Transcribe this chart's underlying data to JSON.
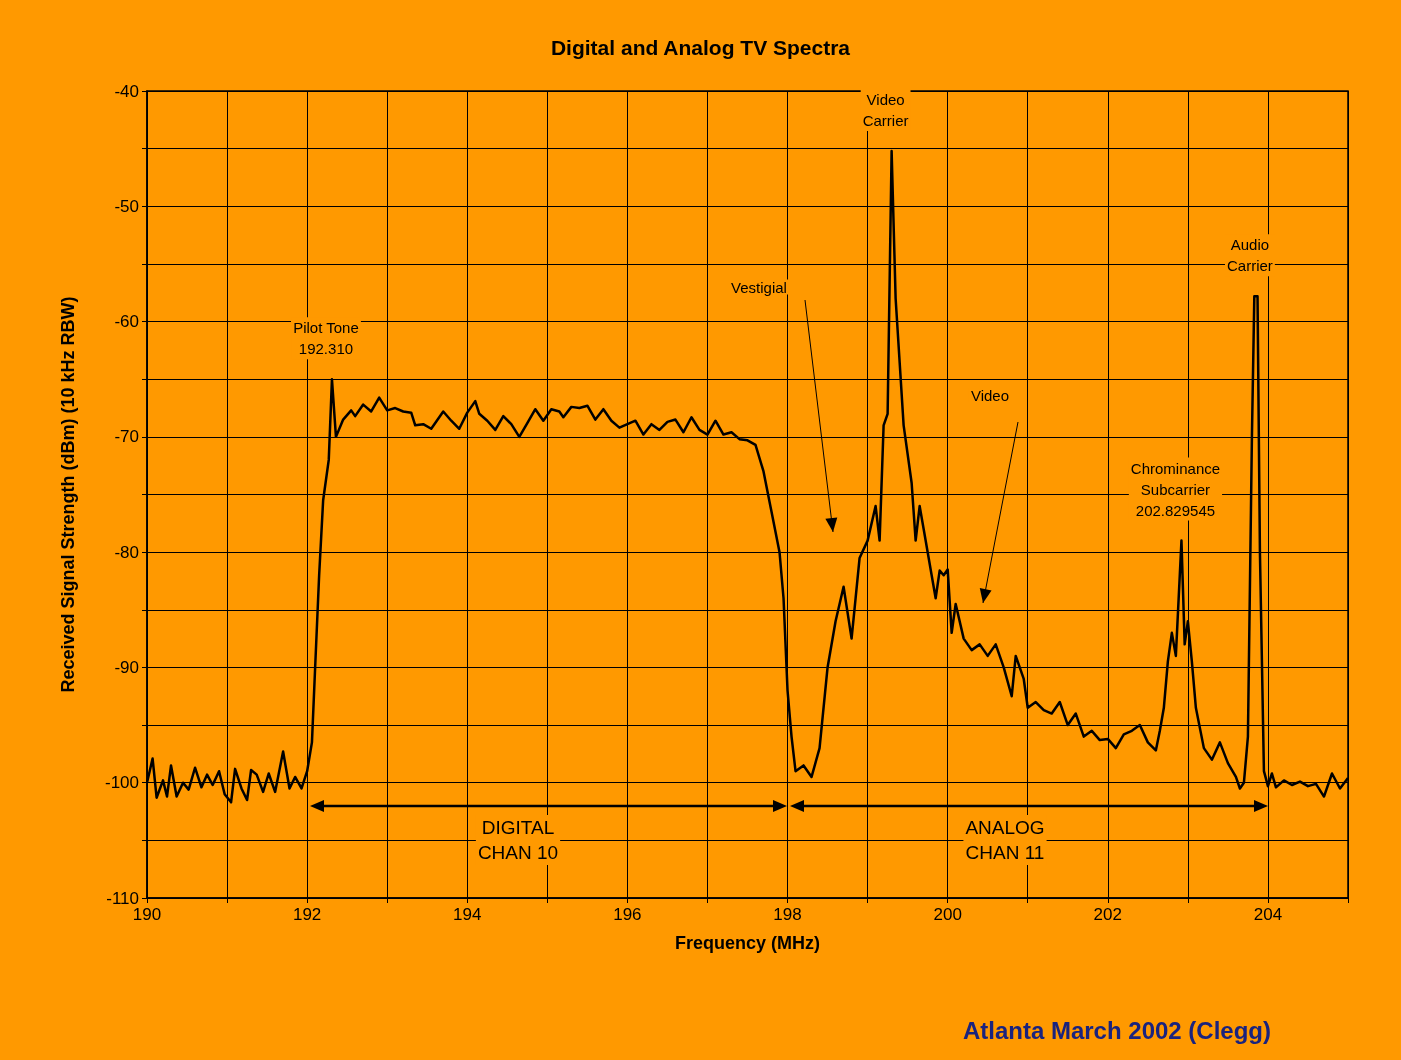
{
  "chart_data": {
    "type": "line",
    "title": "Digital and Analog TV Spectra",
    "xlabel": "Frequency (MHz)",
    "ylabel": "Received Signal Strength (dBm) (10 kHz RBW)",
    "x": [
      190.0,
      190.07,
      190.12,
      190.2,
      190.25,
      190.3,
      190.37,
      190.45,
      190.52,
      190.6,
      190.68,
      190.75,
      190.82,
      190.9,
      190.97,
      191.05,
      191.1,
      191.18,
      191.25,
      191.3,
      191.37,
      191.45,
      191.52,
      191.6,
      191.7,
      191.78,
      191.85,
      191.93,
      192.0,
      192.06,
      192.1,
      192.15,
      192.2,
      192.27,
      192.31,
      192.36,
      192.45,
      192.55,
      192.6,
      192.7,
      192.8,
      192.9,
      193.0,
      193.1,
      193.2,
      193.3,
      193.35,
      193.45,
      193.55,
      193.6,
      193.7,
      193.8,
      193.9,
      194.0,
      194.1,
      194.15,
      194.25,
      194.35,
      194.45,
      194.55,
      194.65,
      194.75,
      194.85,
      194.95,
      195.05,
      195.15,
      195.2,
      195.3,
      195.4,
      195.5,
      195.6,
      195.7,
      195.8,
      195.9,
      196.0,
      196.1,
      196.2,
      196.3,
      196.4,
      196.5,
      196.6,
      196.7,
      196.8,
      196.9,
      197.0,
      197.1,
      197.2,
      197.3,
      197.4,
      197.5,
      197.6,
      197.7,
      197.8,
      197.9,
      197.95,
      198.0,
      198.05,
      198.1,
      198.2,
      198.3,
      198.4,
      198.5,
      198.6,
      198.7,
      198.8,
      198.85,
      198.9,
      199.0,
      199.1,
      199.15,
      199.2,
      199.25,
      199.3,
      199.35,
      199.45,
      199.55,
      199.6,
      199.65,
      199.7,
      199.8,
      199.85,
      199.9,
      199.95,
      200.0,
      200.05,
      200.1,
      200.2,
      200.3,
      200.4,
      200.5,
      200.6,
      200.7,
      200.8,
      200.85,
      200.95,
      201.0,
      201.1,
      201.2,
      201.3,
      201.4,
      201.5,
      201.6,
      201.7,
      201.8,
      201.9,
      202.0,
      202.1,
      202.2,
      202.3,
      202.4,
      202.5,
      202.6,
      202.65,
      202.7,
      202.75,
      202.8,
      202.85,
      202.92,
      202.96,
      203.0,
      203.05,
      203.1,
      203.2,
      203.3,
      203.4,
      203.5,
      203.6,
      203.65,
      203.7,
      203.75,
      203.8,
      203.83,
      203.87,
      203.9,
      203.95,
      204.0,
      204.05,
      204.1,
      204.2,
      204.3,
      204.4,
      204.5,
      204.6,
      204.7,
      204.8,
      204.9,
      205.0
    ],
    "series": [
      {
        "color": "#000000",
        "values": [
          -100,
          -97.9,
          -101.3,
          -99.8,
          -101.2,
          -98.5,
          -101.2,
          -100,
          -100.6,
          -98.7,
          -100.4,
          -99.3,
          -100.2,
          -99,
          -101,
          -101.7,
          -98.8,
          -100.5,
          -101.5,
          -98.9,
          -99.3,
          -100.8,
          -99.2,
          -100.8,
          -97.3,
          -100.5,
          -99.5,
          -100.5,
          -99,
          -96.5,
          -90,
          -82,
          -75.5,
          -72,
          -65,
          -70,
          -68.5,
          -67.7,
          -68.2,
          -67.2,
          -67.8,
          -66.6,
          -67.7,
          -67.5,
          -67.8,
          -67.9,
          -69,
          -68.9,
          -69.3,
          -68.8,
          -67.8,
          -68.6,
          -69.3,
          -67.9,
          -66.9,
          -68,
          -68.6,
          -69.4,
          -68.2,
          -68.9,
          -70,
          -68.8,
          -67.6,
          -68.6,
          -67.6,
          -67.8,
          -68.3,
          -67.4,
          -67.5,
          -67.3,
          -68.5,
          -67.6,
          -68.6,
          -69.2,
          -68.9,
          -68.6,
          -69.8,
          -68.9,
          -69.4,
          -68.7,
          -68.5,
          -69.6,
          -68.3,
          -69.4,
          -69.8,
          -68.6,
          -69.8,
          -69.6,
          -70.2,
          -70.3,
          -70.7,
          -73,
          -76.5,
          -80,
          -84,
          -92,
          -96,
          -99,
          -98.5,
          -99.5,
          -97,
          -90,
          -86,
          -83,
          -87.5,
          -84,
          -80.5,
          -79,
          -76,
          -79,
          -69,
          -68,
          -45.2,
          -58,
          -69,
          -74,
          -79,
          -76,
          -78,
          -82,
          -84,
          -81.6,
          -82,
          -81.5,
          -87,
          -84.5,
          -87.5,
          -88.5,
          -88,
          -89,
          -88,
          -90,
          -92.5,
          -89,
          -91,
          -93.5,
          -93,
          -93.7,
          -94,
          -93,
          -95,
          -94,
          -96,
          -95.5,
          -96.3,
          -96.2,
          -97,
          -95.8,
          -95.5,
          -95,
          -96.5,
          -97.2,
          -95.5,
          -93.5,
          -89.5,
          -87,
          -89,
          -79,
          -88,
          -86,
          -89.5,
          -93.5,
          -97,
          -98,
          -96.5,
          -98.3,
          -99.5,
          -100.5,
          -100,
          -96,
          -70,
          -57.8,
          -57.8,
          -80,
          -99,
          -100.3,
          -99.2,
          -100.4,
          -99.8,
          -100.2,
          -99.9,
          -100.3,
          -100.1,
          -101.2,
          -99.2,
          -100.5,
          -99.6
        ]
      }
    ],
    "xlim": [
      190,
      205
    ],
    "xticks": [
      190,
      {
        "value": 191,
        "label": null
      },
      192,
      {
        "value": 193,
        "label": null
      },
      194,
      {
        "value": 195,
        "label": null
      },
      196,
      {
        "value": 197,
        "label": null
      },
      198,
      {
        "value": 199,
        "label": null
      },
      200,
      {
        "value": 201,
        "label": null
      },
      202,
      {
        "value": 203,
        "label": null
      },
      204,
      {
        "value": 205,
        "label": null
      }
    ],
    "ylim": [
      -110,
      -40
    ],
    "yticks": [
      -110,
      {
        "value": -105,
        "label": null
      },
      -100,
      {
        "value": -95,
        "label": null
      },
      -90,
      {
        "value": -85,
        "label": null
      },
      -80,
      {
        "value": -75,
        "label": null
      },
      -70,
      {
        "value": -65,
        "label": null
      },
      -60,
      {
        "value": -55,
        "label": null
      },
      -50,
      {
        "value": -45,
        "label": null
      },
      -40
    ],
    "grid": true,
    "marker": "none",
    "line_style": "solid",
    "annotations": [
      {
        "text": "Pilot Tone\n192.310",
        "x": 192.31,
        "y": -65
      },
      {
        "text": "Video\nCarrier",
        "x": 199.3,
        "y": -45.2
      },
      {
        "text": "Audio\nCarrier",
        "x": 203.85,
        "y": -57.8
      },
      {
        "text": "Chrominance\nSubcarrier\n202.829545",
        "x": 202.92,
        "y": -79
      },
      "Vestigial",
      "Video",
      "DIGITAL\nCHAN 10",
      "ANALOG\nCHAN 11",
      "Atlanta March 2002 (Clegg)"
    ]
  }
}
